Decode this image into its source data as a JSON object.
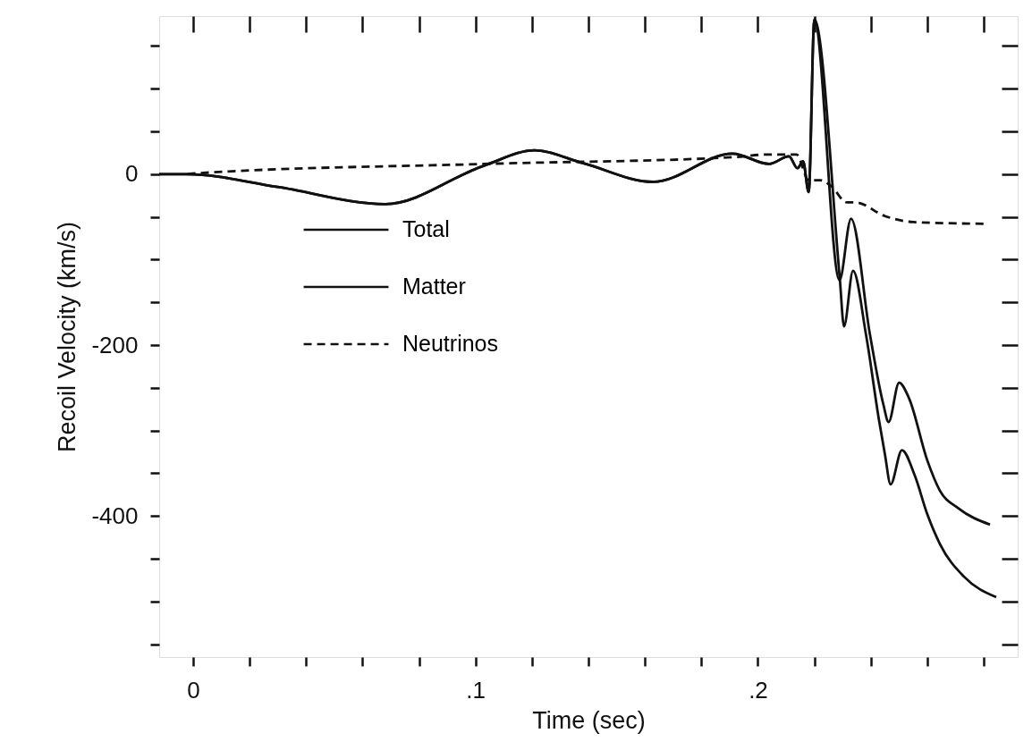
{
  "chart_data": {
    "type": "line",
    "xlabel": "Time (sec)",
    "ylabel": "Recoil Velocity (km/s)",
    "xlim": [
      -0.012,
      0.292
    ],
    "ylim": [
      -565,
      185
    ],
    "xticks": [
      {
        "value": 0,
        "label": "0"
      },
      {
        "value": 0.02,
        "label": null
      },
      {
        "value": 0.04,
        "label": null
      },
      {
        "value": 0.06,
        "label": null
      },
      {
        "value": 0.08,
        "label": null
      },
      {
        "value": 0.1,
        "label": ".1"
      },
      {
        "value": 0.12,
        "label": null
      },
      {
        "value": 0.14,
        "label": null
      },
      {
        "value": 0.16,
        "label": null
      },
      {
        "value": 0.18,
        "label": null
      },
      {
        "value": 0.2,
        "label": ".2"
      },
      {
        "value": 0.22,
        "label": null
      },
      {
        "value": 0.24,
        "label": null
      },
      {
        "value": 0.26,
        "label": null
      },
      {
        "value": 0.28,
        "label": null
      }
    ],
    "yticks": [
      {
        "value": -550,
        "label": null
      },
      {
        "value": -500,
        "label": null
      },
      {
        "value": -450,
        "label": null
      },
      -400,
      {
        "value": -350,
        "label": null
      },
      {
        "value": -300,
        "label": null
      },
      {
        "value": -250,
        "label": null
      },
      -200,
      {
        "value": -150,
        "label": null
      },
      {
        "value": -100,
        "label": null
      },
      {
        "value": -50,
        "label": null
      },
      0,
      {
        "value": 50,
        "label": null
      },
      {
        "value": 100,
        "label": null
      },
      {
        "value": 150,
        "label": null
      }
    ],
    "grid": false,
    "legend": "top left",
    "marker": "none",
    "series": [
      {
        "name": "Total",
        "color": "#111111",
        "line_style": "solid",
        "x": [
          -0.012,
          -0.002,
          0.03,
          0.068,
          0.103,
          0.121,
          0.138,
          0.163,
          0.191,
          0.204,
          0.211,
          0.214,
          0.216,
          0.218,
          0.22,
          0.229,
          0.2305,
          0.2337,
          0.2383,
          0.243,
          0.245,
          0.247,
          0.251,
          0.2556,
          0.26,
          0.2645,
          0.273,
          0.2844
        ],
        "values": [
          0,
          0,
          -15,
          -35,
          10,
          28,
          13,
          -9,
          24,
          12,
          21,
          7,
          15,
          -21,
          181,
          -122,
          -178,
          -113,
          -188,
          -290,
          -328,
          -363,
          -323,
          -353,
          -398,
          -433,
          -471,
          -495
        ]
      },
      {
        "name": "Matter",
        "color": "#111111",
        "line_style": "solid",
        "x": [
          -0.012,
          -0.002,
          0.03,
          0.068,
          0.103,
          0.121,
          0.138,
          0.163,
          0.191,
          0.204,
          0.211,
          0.214,
          0.216,
          0.218,
          0.22,
          0.2289,
          0.233,
          0.2397,
          0.2444,
          0.2463,
          0.25,
          0.2535,
          0.26,
          0.2644,
          0.271,
          0.2822
        ],
        "values": [
          0,
          0,
          -15,
          -35,
          10,
          28,
          13,
          -9,
          24,
          12,
          21,
          7,
          15,
          -21,
          181,
          -124,
          -52,
          -188,
          -269,
          -290,
          -244,
          -262,
          -335,
          -370,
          -391,
          -410
        ]
      },
      {
        "name": "Neutrinos",
        "color": "#111111",
        "line_style": "dashed",
        "x": [
          -0.002,
          0.001,
          0.103,
          0.192,
          0.203,
          0.2137,
          0.218,
          0.222,
          0.226,
          0.2315,
          0.2345,
          0.245,
          0.255,
          0.28
        ],
        "values": [
          0,
          1,
          12,
          20,
          23,
          23,
          -7,
          -7,
          -14,
          -33,
          -33,
          -49,
          -56,
          -58
        ]
      }
    ]
  }
}
